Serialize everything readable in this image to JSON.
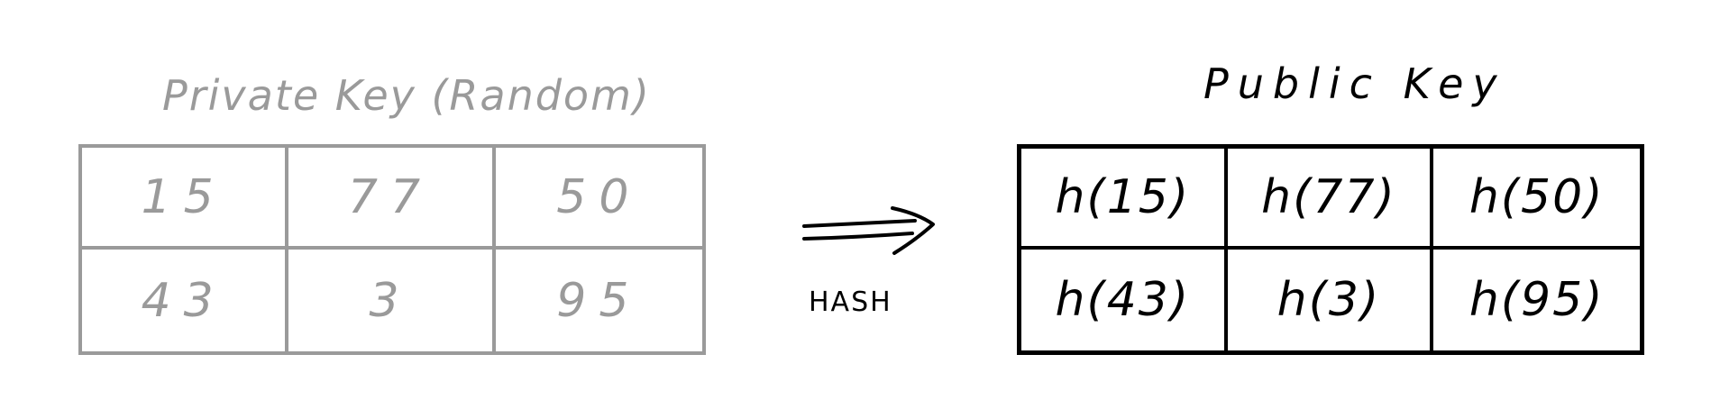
{
  "private_key": {
    "title": "Private Key (Random)",
    "cells": [
      "15",
      "77",
      "50",
      "43",
      "3",
      "95"
    ]
  },
  "hash": {
    "label": "HASH"
  },
  "public_key": {
    "title": "Public Key",
    "cells": [
      "h(15)",
      "h(77)",
      "h(50)",
      "h(43)",
      "h(3)",
      "h(95)"
    ]
  },
  "colors": {
    "private": "#9a9a9a",
    "public": "#000000"
  }
}
